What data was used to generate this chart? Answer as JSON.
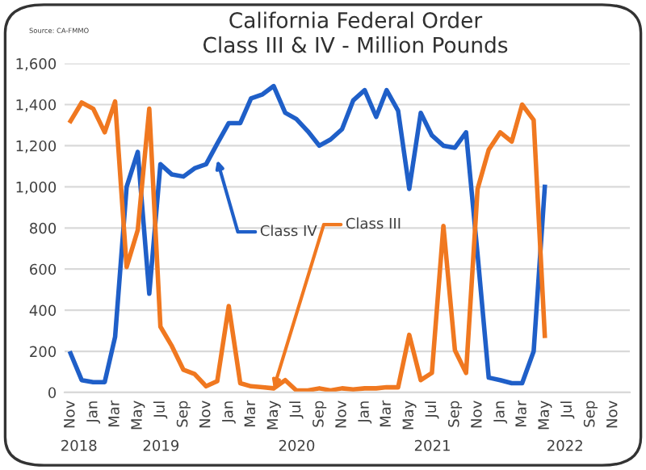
{
  "chart_data": {
    "type": "line",
    "title": "California Federal Order\nClass III & IV - Million Pounds",
    "x": [
      "2018-11",
      "2018-12",
      "2019-01",
      "2019-02",
      "2019-03",
      "2019-04",
      "2019-05",
      "2019-06",
      "2019-07",
      "2019-08",
      "2019-09",
      "2019-10",
      "2019-11",
      "2019-12",
      "2020-01",
      "2020-02",
      "2020-03",
      "2020-04",
      "2020-05",
      "2020-06",
      "2020-07",
      "2020-08",
      "2020-09",
      "2020-10",
      "2020-11",
      "2020-12",
      "2021-01",
      "2021-02",
      "2021-03",
      "2021-04",
      "2021-05",
      "2021-06",
      "2021-07",
      "2021-08",
      "2021-09",
      "2021-10",
      "2021-11",
      "2021-12",
      "2022-01",
      "2022-02",
      "2022-03",
      "2022-04",
      "2022-05"
    ],
    "series": [
      {
        "color": "#1f5fc8",
        "values": [
          190,
          60,
          50,
          50,
          270,
          1000,
          1170,
          480,
          1110,
          1060,
          1050,
          1090,
          1110,
          1210,
          1310,
          1310,
          1430,
          1450,
          1490,
          1360,
          1330,
          1270,
          1200,
          1230,
          1280,
          1420,
          1470,
          1340,
          1470,
          1370,
          990,
          1360,
          1250,
          1200,
          1190,
          1265,
          670,
          72,
          60,
          45,
          45,
          200,
          1000
        ]
      },
      {
        "color": "#f07820",
        "values": [
          1320,
          1410,
          1380,
          1265,
          1415,
          610,
          790,
          1380,
          320,
          225,
          110,
          90,
          30,
          55,
          420,
          45,
          30,
          25,
          20,
          60,
          10,
          10,
          20,
          10,
          20,
          15,
          20,
          20,
          25,
          25,
          280,
          60,
          95,
          810,
          205,
          95,
          990,
          1180,
          1265,
          1220,
          1400,
          1325,
          275
        ]
      }
    ],
    "xlim": [
      "2018-10-16",
      "2022-12-16"
    ],
    "xticks": [
      {
        "value": "2018-11",
        "label": "Nov"
      },
      {
        "value": "2019-01",
        "label": "Jan"
      },
      {
        "value": "2019-03",
        "label": "Mar"
      },
      {
        "value": "2019-05",
        "label": "May"
      },
      {
        "value": "2019-07",
        "label": "Jul"
      },
      {
        "value": "2019-09",
        "label": "Sep"
      },
      {
        "value": "2019-11",
        "label": "Nov"
      },
      {
        "value": "2020-01",
        "label": "Jan"
      },
      {
        "value": "2020-03",
        "label": "Mar"
      },
      {
        "value": "2020-05",
        "label": "May"
      },
      {
        "value": "2020-07",
        "label": "Jul"
      },
      {
        "value": "2020-09",
        "label": "Sep"
      },
      {
        "value": "2020-11",
        "label": "Nov"
      },
      {
        "value": "2021-01",
        "label": "Jan"
      },
      {
        "value": "2021-03",
        "label": "Mar"
      },
      {
        "value": "2021-05",
        "label": "May"
      },
      {
        "value": "2021-07",
        "label": "Jul"
      },
      {
        "value": "2021-09",
        "label": "Sep"
      },
      {
        "value": "2021-11",
        "label": "Nov"
      },
      {
        "value": "2022-01",
        "label": "Jan"
      },
      {
        "value": "2022-03",
        "label": "Mar"
      },
      {
        "value": "2022-05",
        "label": "May"
      },
      {
        "value": "2022-07",
        "label": "Jul"
      },
      {
        "value": "2022-09",
        "label": "Sep"
      },
      {
        "value": "2022-11",
        "label": "Nov"
      }
    ],
    "ylim": [
      0,
      1600
    ],
    "yticks": [
      0,
      {
        "value": 200,
        "label": "200"
      },
      {
        "value": 400,
        "label": "400"
      },
      {
        "value": 600,
        "label": "600"
      },
      {
        "value": 800,
        "label": "800"
      },
      {
        "value": 1000,
        "label": "1,000"
      },
      {
        "value": 1200,
        "label": "1,200"
      },
      {
        "value": 1400,
        "label": "1,400"
      },
      {
        "value": 1600,
        "label": "1,600"
      }
    ],
    "grid": "y",
    "legend": false,
    "marker": "none",
    "line_style": "solid",
    "annotations": [
      "Source: CA-FMMO",
      {
        "text": "Class IV",
        "x": "2019-12",
        "y": 1130
      },
      {
        "text": "Class III",
        "x": "2020-05",
        "y": 20
      },
      "2018",
      "2019",
      "2020",
      "2021",
      "2022"
    ]
  }
}
